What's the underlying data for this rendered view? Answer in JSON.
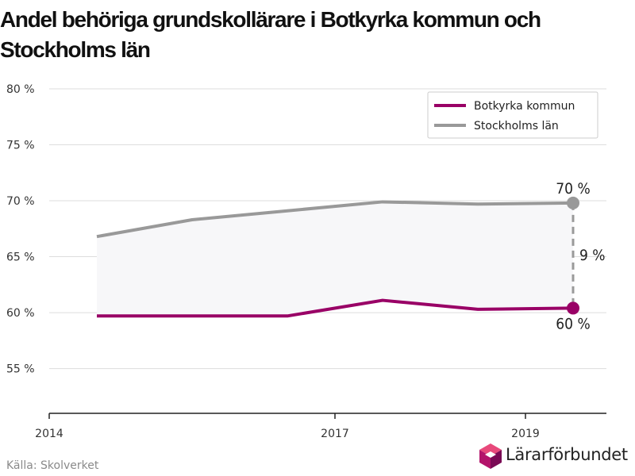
{
  "title": {
    "line1": "Andel behöriga grundskollärare i Botkyrka kommun och",
    "line2": "Stockholms län"
  },
  "source": "Källa: Skolverket",
  "logo": {
    "text": "Lärarförbundet"
  },
  "colors": {
    "botkyrka": "#990066",
    "stockholm": "#999999",
    "band": "#f7f7f9",
    "grid": "#dddddd",
    "axis": "#222222"
  },
  "chart_data": {
    "type": "line",
    "title": "Andel behöriga grundskollärare i Botkyrka kommun och Stockholms län",
    "xlabel": "",
    "ylabel": "",
    "xlim": [
      2014,
      2019.85
    ],
    "ylim": [
      51,
      80
    ],
    "x_ticks": [
      2014,
      2017,
      2019
    ],
    "x_tick_labels": [
      "2014",
      "2017",
      "2019"
    ],
    "y_ticks": [
      55,
      60,
      65,
      70,
      75,
      80
    ],
    "y_tick_labels": [
      "55 %",
      "60 %",
      "65 %",
      "70 %",
      "75 %",
      "80 %"
    ],
    "grid": true,
    "legend_position": "top-right",
    "series": [
      {
        "name": "Botkyrka kommun",
        "x": [
          2014.5,
          2016.5,
          2017.5,
          2018.5,
          2019.5
        ],
        "y": [
          59.7,
          59.7,
          61.1,
          60.3,
          60.4
        ]
      },
      {
        "name": "Stockholms län",
        "x": [
          2014.5,
          2015.5,
          2016.5,
          2017.5,
          2018.5,
          2019.5
        ],
        "y": [
          66.8,
          68.3,
          69.1,
          69.9,
          69.7,
          69.8
        ]
      }
    ],
    "annotations": {
      "stockholm_end": "70 %",
      "botkyrka_end": "60 %",
      "difference": "9 %"
    }
  }
}
